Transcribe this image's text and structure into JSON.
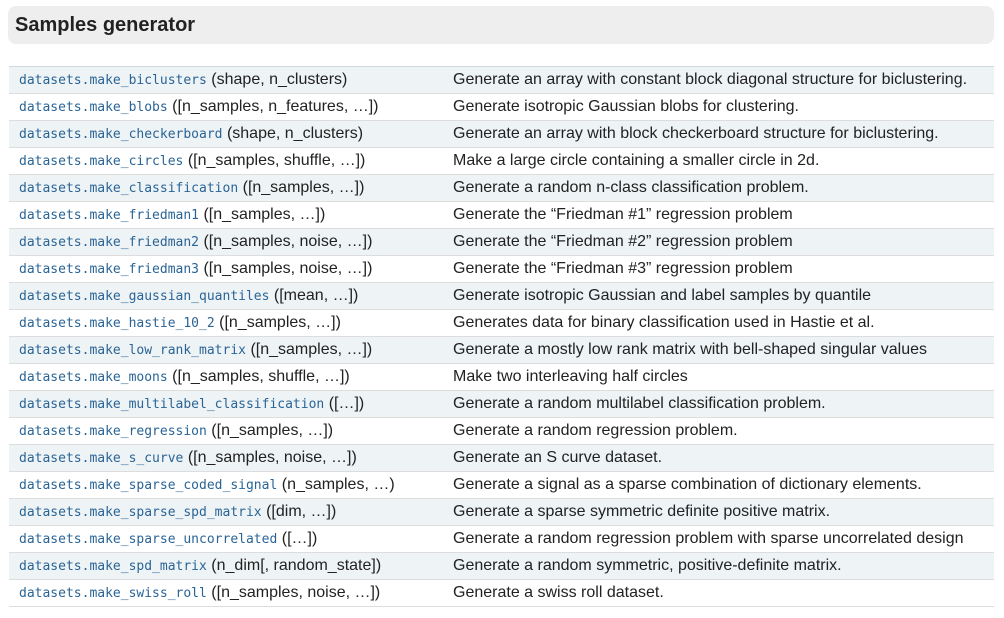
{
  "section": {
    "title": "Samples generator"
  },
  "rows": [
    {
      "func": "datasets.make_biclusters",
      "args": "(shape, n_clusters)",
      "desc": "Generate an array with constant block diagonal structure for biclustering."
    },
    {
      "func": "datasets.make_blobs",
      "args": "([n_samples, n_features, …])",
      "desc": "Generate isotropic Gaussian blobs for clustering."
    },
    {
      "func": "datasets.make_checkerboard",
      "args": "(shape, n_clusters)",
      "desc": "Generate an array with block checkerboard structure for biclustering."
    },
    {
      "func": "datasets.make_circles",
      "args": "([n_samples, shuffle, …])",
      "desc": "Make a large circle containing a smaller circle in 2d."
    },
    {
      "func": "datasets.make_classification",
      "args": "([n_samples, …])",
      "desc": "Generate a random n-class classification problem."
    },
    {
      "func": "datasets.make_friedman1",
      "args": "([n_samples, …])",
      "desc": "Generate the “Friedman #1” regression problem"
    },
    {
      "func": "datasets.make_friedman2",
      "args": "([n_samples, noise, …])",
      "desc": "Generate the “Friedman #2” regression problem"
    },
    {
      "func": "datasets.make_friedman3",
      "args": "([n_samples, noise, …])",
      "desc": "Generate the “Friedman #3” regression problem"
    },
    {
      "func": "datasets.make_gaussian_quantiles",
      "args": "([mean, …])",
      "desc": "Generate isotropic Gaussian and label samples by quantile"
    },
    {
      "func": "datasets.make_hastie_10_2",
      "args": "([n_samples, …])",
      "desc": "Generates data for binary classification used in Hastie et al."
    },
    {
      "func": "datasets.make_low_rank_matrix",
      "args": "([n_samples, …])",
      "desc": "Generate a mostly low rank matrix with bell-shaped singular values"
    },
    {
      "func": "datasets.make_moons",
      "args": "([n_samples, shuffle, …])",
      "desc": "Make two interleaving half circles"
    },
    {
      "func": "datasets.make_multilabel_classification",
      "args": "([…])",
      "desc": "Generate a random multilabel classification problem."
    },
    {
      "func": "datasets.make_regression",
      "args": "([n_samples, …])",
      "desc": "Generate a random regression problem."
    },
    {
      "func": "datasets.make_s_curve",
      "args": "([n_samples, noise, …])",
      "desc": "Generate an S curve dataset."
    },
    {
      "func": "datasets.make_sparse_coded_signal",
      "args": "(n_samples, …)",
      "desc": "Generate a signal as a sparse combination of dictionary elements."
    },
    {
      "func": "datasets.make_sparse_spd_matrix",
      "args": "([dim, …])",
      "desc": "Generate a sparse symmetric definite positive matrix."
    },
    {
      "func": "datasets.make_sparse_uncorrelated",
      "args": "([…])",
      "desc": "Generate a random regression problem with sparse uncorrelated design"
    },
    {
      "func": "datasets.make_spd_matrix",
      "args": "(n_dim[, random_state])",
      "desc": "Generate a random symmetric, positive-definite matrix."
    },
    {
      "func": "datasets.make_swiss_roll",
      "args": "([n_samples, noise, …])",
      "desc": "Generate a swiss roll dataset."
    }
  ],
  "colors": {
    "link": "#2a6496",
    "header_bg": "#eeeeee",
    "row_alt_bg": "#eef3f5"
  }
}
